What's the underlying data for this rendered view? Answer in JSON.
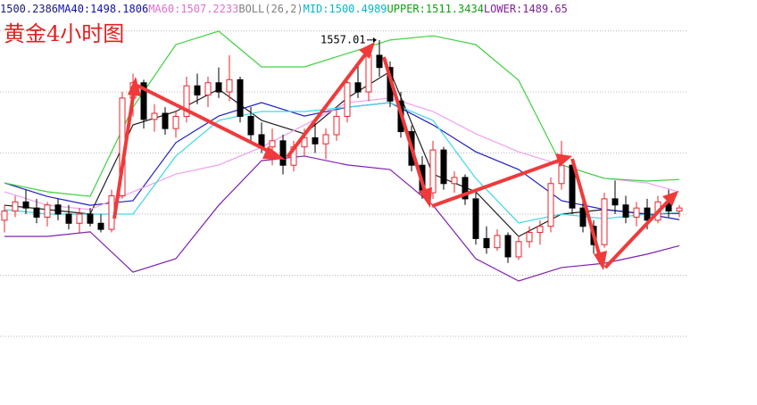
{
  "chart_data": {
    "type": "candlestick",
    "title": "黄金4小时图",
    "up_color": "#e8242c",
    "down_color": "#000000",
    "grid": true,
    "ylim": [
      1437.5,
      1570.1
    ],
    "yticks": [
      1460,
      1480,
      1500,
      1520,
      1540,
      1560
    ],
    "x": [
      0,
      1,
      2,
      3,
      4,
      5,
      6,
      7,
      8,
      9,
      10,
      11,
      12,
      13,
      14,
      15,
      16,
      17,
      18,
      19,
      20,
      21,
      22,
      23,
      24,
      25,
      26,
      27,
      28,
      29,
      30,
      31,
      32,
      33,
      34,
      35,
      36,
      37,
      38,
      39,
      40,
      41,
      42,
      43,
      44,
      45,
      46,
      47,
      48,
      49,
      50,
      51,
      52,
      53,
      54,
      55,
      56,
      57,
      58,
      59,
      60,
      61,
      62,
      63
    ],
    "open": [
      1498,
      1501,
      1504,
      1502,
      1499,
      1503,
      1500,
      1497,
      1500,
      1497,
      1495,
      1506,
      1538,
      1543,
      1531,
      1533,
      1528,
      1532,
      1542,
      1539,
      1543,
      1540,
      1544,
      1532,
      1526,
      1522,
      1524,
      1516,
      1522,
      1525,
      1523,
      1526,
      1532,
      1543,
      1540,
      1552,
      1548,
      1537,
      1527,
      1516,
      1507,
      1521,
      1510,
      1512,
      1505,
      1492,
      1489,
      1493,
      1486,
      1491,
      1494,
      1496,
      1510,
      1516,
      1502,
      1496,
      1490,
      1505,
      1503,
      1499,
      1502,
      1498,
      1504,
      1501
    ],
    "high": [
      1503,
      1506,
      1508,
      1505,
      1504,
      1505,
      1503,
      1502,
      1502,
      1500,
      1508,
      1540,
      1546,
      1544,
      1536,
      1535,
      1534,
      1545,
      1546,
      1545,
      1548,
      1552,
      1545,
      1535,
      1530,
      1528,
      1526,
      1524,
      1528,
      1530,
      1528,
      1534,
      1545,
      1550,
      1554,
      1557.01,
      1550,
      1540,
      1529,
      1519,
      1524,
      1522,
      1514,
      1513,
      1507,
      1496,
      1495,
      1494,
      1493,
      1496,
      1498,
      1512,
      1524,
      1518,
      1505,
      1498,
      1507,
      1511,
      1506,
      1504,
      1505,
      1506,
      1508,
      1503
    ],
    "low": [
      1494,
      1499,
      1500,
      1497,
      1496,
      1498,
      1495,
      1494,
      1496,
      1494,
      1494,
      1505,
      1532,
      1528,
      1527,
      1526,
      1525,
      1530,
      1536,
      1535,
      1538,
      1537,
      1530,
      1524,
      1520,
      1516,
      1513,
      1514,
      1519,
      1520,
      1518,
      1524,
      1530,
      1538,
      1537,
      1545,
      1535,
      1525,
      1514,
      1505,
      1505,
      1508,
      1507,
      1503,
      1490,
      1487,
      1488,
      1484,
      1485,
      1489,
      1490,
      1494,
      1508,
      1500,
      1494,
      1487,
      1489,
      1500,
      1497,
      1496,
      1495,
      1497,
      1499,
      1499
    ],
    "close": [
      1501,
      1504,
      1502,
      1499,
      1503,
      1500,
      1497,
      1500,
      1497,
      1495,
      1506,
      1538,
      1543,
      1531,
      1533,
      1528,
      1532,
      1542,
      1539,
      1543,
      1540,
      1544,
      1532,
      1526,
      1522,
      1524,
      1516,
      1522,
      1525,
      1523,
      1526,
      1532,
      1543,
      1540,
      1552,
      1548,
      1537,
      1527,
      1516,
      1507,
      1521,
      1510,
      1512,
      1505,
      1492,
      1489,
      1493,
      1486,
      1491,
      1494,
      1496,
      1510,
      1516,
      1502,
      1496,
      1490,
      1505,
      1503,
      1499,
      1502,
      1498,
      1504,
      1501,
      1502
    ],
    "annotation_index": 35,
    "boll_label": "BOLL(26,2)",
    "overlay_x": [
      0,
      4,
      8,
      12,
      16,
      20,
      24,
      28,
      32,
      36,
      40,
      44,
      48,
      52,
      56,
      60,
      63
    ],
    "overlays": [
      {
        "text_color": "#1a1a7a",
        "color": "#202020",
        "values": [
          1502.9,
          1501.5,
          1500,
          1529.2,
          1533.6,
          1540.9,
          1530.7,
          1526.3,
          1538,
          1546.7,
          1513.1,
          1507.3,
          1492.7,
          1500,
          1501.5,
          1500,
          1500.2386
        ]
      },
      {
        "label": "MA40:",
        "text_color": "#1010b0",
        "color": "#2020c0",
        "values": [
          1510.2,
          1505.8,
          1502.9,
          1504.4,
          1523.4,
          1532.1,
          1536.5,
          1532.1,
          1535,
          1536.5,
          1529.2,
          1520.4,
          1514.6,
          1504.4,
          1501.5,
          1500,
          1498.1806
        ]
      },
      {
        "label": "MA60:",
        "text_color": "#e070d0",
        "color": "#f0a0f0",
        "values": [
          1507.3,
          1502.9,
          1501.5,
          1507.3,
          1513.1,
          1516.1,
          1521.9,
          1529.2,
          1536.5,
          1538,
          1533.6,
          1526.3,
          1520.4,
          1516.1,
          1511.7,
          1510.2,
          1507.2233
        ]
      },
      {
        "label": "MID:",
        "text_color": "#00b8c8",
        "color": "#40d8e8",
        "values": [
          1501.5,
          1500,
          1500,
          1500,
          1519,
          1530.7,
          1533.6,
          1533.6,
          1535,
          1536.5,
          1530.7,
          1511.7,
          1497.1,
          1500,
          1498.5,
          1500,
          1500.4989
        ]
      },
      {
        "label": "UPPER:",
        "text_color": "#10a010",
        "color": "#40d040",
        "values": [
          1510.2,
          1507.3,
          1505.8,
          1535,
          1555.5,
          1559.9,
          1548.2,
          1548.2,
          1552.6,
          1557,
          1558.4,
          1555.5,
          1543.8,
          1516.1,
          1511.7,
          1510.8,
          1511.3434
        ]
      },
      {
        "label": "LOWER:",
        "text_color": "#8020a0",
        "color": "#8020b0",
        "values": [
          1492.7,
          1492.7,
          1494.2,
          1481,
          1485.4,
          1502.9,
          1517.5,
          1519,
          1516.1,
          1514.6,
          1502.9,
          1485.4,
          1478.1,
          1482.5,
          1483.9,
          1486.9,
          1489.65
        ]
      }
    ]
  }
}
